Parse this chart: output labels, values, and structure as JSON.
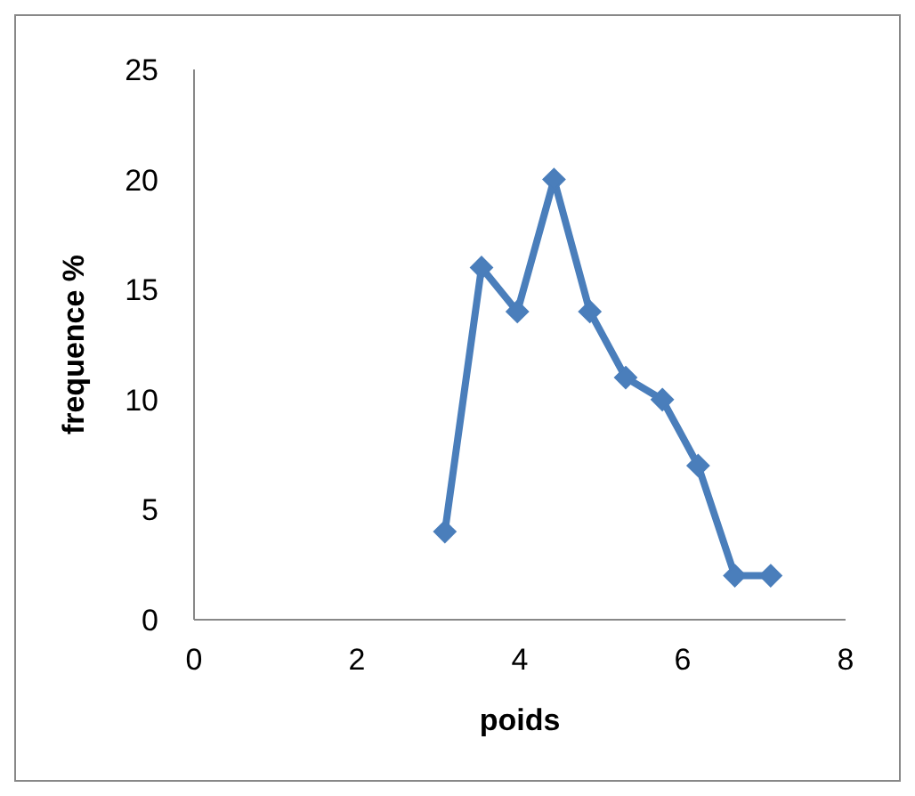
{
  "chart_data": {
    "type": "line",
    "xlabel": "poids",
    "ylabel": "frequence %",
    "x": [
      3.08,
      3.53,
      3.97,
      4.42,
      4.86,
      5.3,
      5.75,
      6.19,
      6.64,
      7.08
    ],
    "series": [
      {
        "color": "#4a7ebb",
        "values": [
          4,
          16,
          14,
          20,
          14,
          11,
          10,
          7,
          2,
          2
        ]
      }
    ],
    "xlim": [
      0,
      8
    ],
    "xticks": [
      0,
      2,
      4,
      6,
      8
    ],
    "ylim": [
      0,
      25
    ],
    "yticks": [
      0,
      5,
      10,
      15,
      20,
      25
    ],
    "grid": false,
    "legend": false,
    "marker": "diamond",
    "line_style": "solid"
  }
}
